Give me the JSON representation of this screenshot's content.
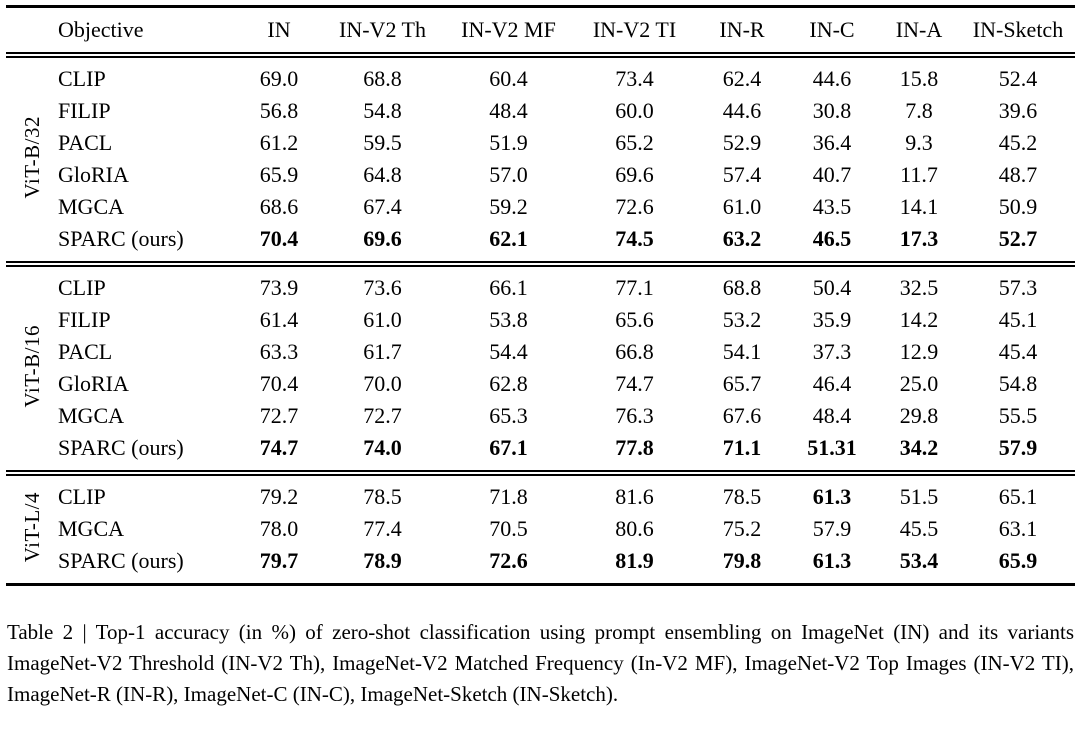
{
  "table": {
    "columns": [
      "Objective",
      "IN",
      "IN-V2 Th",
      "IN-V2 MF",
      "IN-V2 TI",
      "IN-R",
      "IN-C",
      "IN-A",
      "IN-Sketch"
    ],
    "groups": [
      {
        "label": "ViT-B/32",
        "rows": [
          {
            "objective": "CLIP",
            "values": [
              "69.0",
              "68.8",
              "60.4",
              "73.4",
              "62.4",
              "44.6",
              "15.8",
              "52.4"
            ],
            "bold": false,
            "bold_indices": []
          },
          {
            "objective": "FILIP",
            "values": [
              "56.8",
              "54.8",
              "48.4",
              "60.0",
              "44.6",
              "30.8",
              "7.8",
              "39.6"
            ],
            "bold": false,
            "bold_indices": []
          },
          {
            "objective": "PACL",
            "values": [
              "61.2",
              "59.5",
              "51.9",
              "65.2",
              "52.9",
              "36.4",
              "9.3",
              "45.2"
            ],
            "bold": false,
            "bold_indices": []
          },
          {
            "objective": "GloRIA",
            "values": [
              "65.9",
              "64.8",
              "57.0",
              "69.6",
              "57.4",
              "40.7",
              "11.7",
              "48.7"
            ],
            "bold": false,
            "bold_indices": []
          },
          {
            "objective": "MGCA",
            "values": [
              "68.6",
              "67.4",
              "59.2",
              "72.6",
              "61.0",
              "43.5",
              "14.1",
              "50.9"
            ],
            "bold": false,
            "bold_indices": []
          },
          {
            "objective": "SPARC (ours)",
            "values": [
              "70.4",
              "69.6",
              "62.1",
              "74.5",
              "63.2",
              "46.5",
              "17.3",
              "52.7"
            ],
            "bold": true,
            "bold_indices": []
          }
        ]
      },
      {
        "label": "ViT-B/16",
        "rows": [
          {
            "objective": "CLIP",
            "values": [
              "73.9",
              "73.6",
              "66.1",
              "77.1",
              "68.8",
              "50.4",
              "32.5",
              "57.3"
            ],
            "bold": false,
            "bold_indices": []
          },
          {
            "objective": "FILIP",
            "values": [
              "61.4",
              "61.0",
              "53.8",
              "65.6",
              "53.2",
              "35.9",
              "14.2",
              "45.1"
            ],
            "bold": false,
            "bold_indices": []
          },
          {
            "objective": "PACL",
            "values": [
              "63.3",
              "61.7",
              "54.4",
              "66.8",
              "54.1",
              "37.3",
              "12.9",
              "45.4"
            ],
            "bold": false,
            "bold_indices": []
          },
          {
            "objective": "GloRIA",
            "values": [
              "70.4",
              "70.0",
              "62.8",
              "74.7",
              "65.7",
              "46.4",
              "25.0",
              "54.8"
            ],
            "bold": false,
            "bold_indices": []
          },
          {
            "objective": "MGCA",
            "values": [
              "72.7",
              "72.7",
              "65.3",
              "76.3",
              "67.6",
              "48.4",
              "29.8",
              "55.5"
            ],
            "bold": false,
            "bold_indices": []
          },
          {
            "objective": "SPARC (ours)",
            "values": [
              "74.7",
              "74.0",
              "67.1",
              "77.8",
              "71.1",
              "51.31",
              "34.2",
              "57.9"
            ],
            "bold": true,
            "bold_indices": []
          }
        ]
      },
      {
        "label": "ViT-L/4",
        "rows": [
          {
            "objective": "CLIP",
            "values": [
              "79.2",
              "78.5",
              "71.8",
              "81.6",
              "78.5",
              "61.3",
              "51.5",
              "65.1"
            ],
            "bold": false,
            "bold_indices": [
              5
            ]
          },
          {
            "objective": "MGCA",
            "values": [
              "78.0",
              "77.4",
              "70.5",
              "80.6",
              "75.2",
              "57.9",
              "45.5",
              "63.1"
            ],
            "bold": false,
            "bold_indices": []
          },
          {
            "objective": "SPARC (ours)",
            "values": [
              "79.7",
              "78.9",
              "72.6",
              "81.9",
              "79.8",
              "61.3",
              "53.4",
              "65.9"
            ],
            "bold": true,
            "bold_indices": []
          }
        ]
      }
    ]
  },
  "caption": {
    "text": "Table 2 | Top-1 accuracy (in %) of zero-shot classification using prompt ensembling on ImageNet (IN) and its variants ImageNet-V2 Threshold (IN-V2 Th), ImageNet-V2 Matched Frequency (In-V2 MF), ImageNet-V2 Top Images (IN-V2 TI), ImageNet-R (IN-R), ImageNet-C (IN-C), ImageNet-Sketch (IN-Sketch)."
  }
}
